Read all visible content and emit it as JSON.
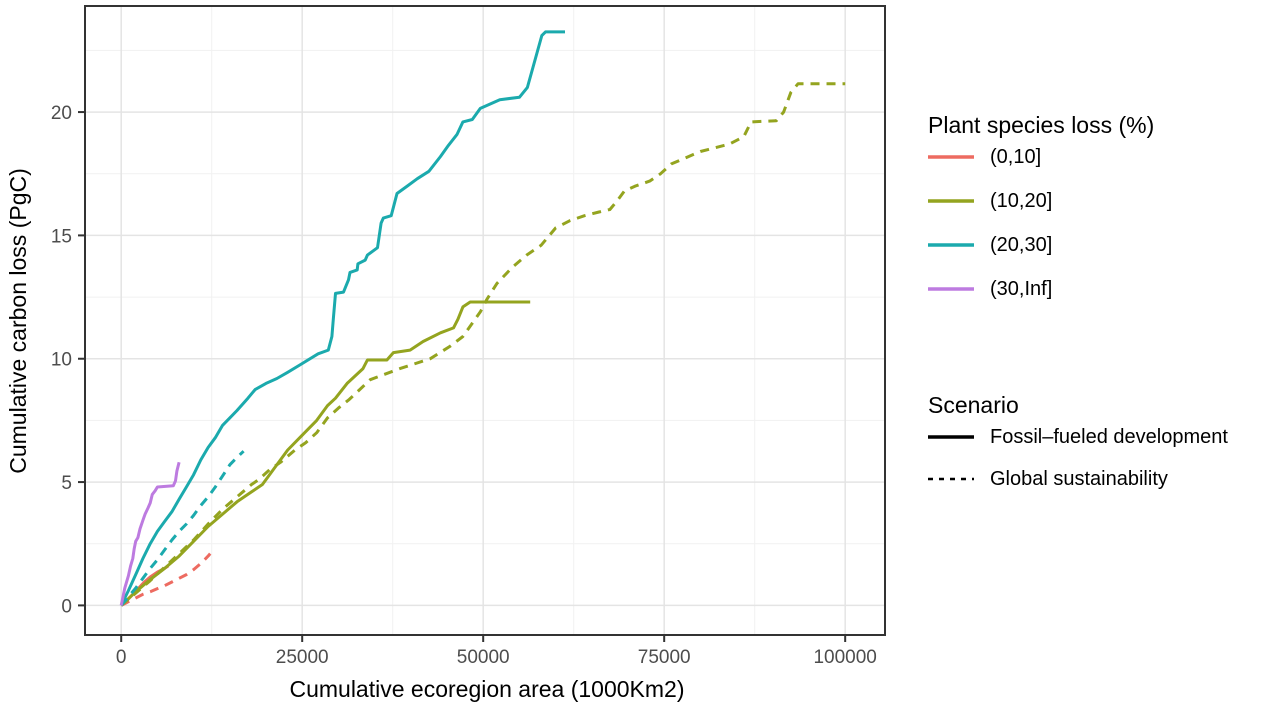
{
  "figure": {
    "background": "#FFFFFF",
    "panel_border_color": "#333333",
    "grid_major_color": "#E4E4E4",
    "grid_minor_color": "#F1F1F1",
    "tick_text_color": "#4D4D4D",
    "axis_title_color": "#000000"
  },
  "axes": {
    "x": {
      "label": "Cumulative ecoregion area (1000Km2)",
      "ticks": [
        0,
        25000,
        50000,
        75000,
        100000
      ],
      "tick_labels": [
        "0",
        "25000",
        "50000",
        "75000",
        "100000"
      ],
      "minor_ticks": [
        12500,
        37500,
        62500,
        87500
      ]
    },
    "y": {
      "label": "Cumulative carbon loss (PgC)",
      "ticks": [
        0,
        5,
        10,
        15,
        20
      ],
      "tick_labels": [
        "0",
        "5",
        "10",
        "15",
        "20"
      ],
      "minor_ticks": [
        2.5,
        7.5,
        12.5,
        17.5,
        22.5
      ]
    }
  },
  "legend_species": {
    "title": "Plant species loss (%)",
    "items": [
      {
        "label": "(0,10]",
        "color": "#ED6B61"
      },
      {
        "label": "(10,20]",
        "color": "#94A41F"
      },
      {
        "label": "(20,30]",
        "color": "#1BAAAD"
      },
      {
        "label": "(30,Inf]",
        "color": "#BD7BE0"
      }
    ]
  },
  "legend_scenario": {
    "title": "Scenario",
    "items": [
      {
        "label": "Fossil–fueled development",
        "line": "solid"
      },
      {
        "label": "Global sustainability",
        "line": "dashed"
      }
    ]
  },
  "chart_data": {
    "type": "line",
    "title": "",
    "xlabel": "Cumulative ecoregion area (1000Km2)",
    "ylabel": "Cumulative carbon loss (PgC)",
    "xlim": [
      -5000,
      105500
    ],
    "ylim": [
      -1.2,
      24.3
    ],
    "grid": "major+minor",
    "legend_position": "right",
    "series": [
      {
        "name": "(0,10] Fossil-fueled development",
        "species_bin": "(0,10]",
        "scenario": "Fossil-fueled development",
        "line": "solid",
        "color": "#ED6B61",
        "points": [
          [
            0,
            0
          ],
          [
            800,
            0.2
          ],
          [
            1600,
            0.45
          ],
          [
            2400,
            0.7
          ],
          [
            3200,
            0.95
          ],
          [
            4000,
            1.15
          ],
          [
            5000,
            1.35
          ],
          [
            6000,
            1.5
          ],
          [
            6500,
            1.6
          ]
        ]
      },
      {
        "name": "(0,10] Global sustainability",
        "species_bin": "(0,10]",
        "scenario": "Global sustainability",
        "line": "dashed",
        "color": "#ED6B61",
        "points": [
          [
            0,
            0
          ],
          [
            1000,
            0.15
          ],
          [
            2000,
            0.3
          ],
          [
            3000,
            0.45
          ],
          [
            4000,
            0.55
          ],
          [
            5000,
            0.68
          ],
          [
            6000,
            0.8
          ],
          [
            7000,
            0.95
          ],
          [
            8000,
            1.1
          ],
          [
            9000,
            1.25
          ],
          [
            10000,
            1.45
          ],
          [
            11000,
            1.7
          ],
          [
            12000,
            2.0
          ],
          [
            12300,
            2.1
          ]
        ]
      },
      {
        "name": "(10,20] Fossil-fueled development",
        "species_bin": "(10,20]",
        "scenario": "Fossil-fueled development",
        "line": "solid",
        "color": "#94A41F",
        "points": [
          [
            0,
            0
          ],
          [
            2000,
            0.55
          ],
          [
            4000,
            1.05
          ],
          [
            6000,
            1.5
          ],
          [
            8000,
            2.0
          ],
          [
            10000,
            2.6
          ],
          [
            12000,
            3.2
          ],
          [
            14000,
            3.7
          ],
          [
            16000,
            4.2
          ],
          [
            18000,
            4.6
          ],
          [
            19500,
            4.9
          ],
          [
            21000,
            5.5
          ],
          [
            23000,
            6.3
          ],
          [
            25000,
            6.9
          ],
          [
            27000,
            7.5
          ],
          [
            28500,
            8.1
          ],
          [
            29600,
            8.4
          ],
          [
            31200,
            9.0
          ],
          [
            33400,
            9.6
          ],
          [
            34000,
            9.95
          ],
          [
            36700,
            9.95
          ],
          [
            37600,
            10.25
          ],
          [
            39900,
            10.35
          ],
          [
            41700,
            10.7
          ],
          [
            44100,
            11.05
          ],
          [
            45900,
            11.25
          ],
          [
            46500,
            11.6
          ],
          [
            47200,
            12.1
          ],
          [
            48200,
            12.3
          ],
          [
            56500,
            12.3
          ]
        ]
      },
      {
        "name": "(10,20] Global sustainability",
        "species_bin": "(10,20]",
        "scenario": "Global sustainability",
        "line": "dashed",
        "color": "#94A41F",
        "points": [
          [
            0,
            0
          ],
          [
            2000,
            0.5
          ],
          [
            4000,
            1.0
          ],
          [
            6000,
            1.55
          ],
          [
            8000,
            2.1
          ],
          [
            10000,
            2.65
          ],
          [
            12000,
            3.3
          ],
          [
            14000,
            3.9
          ],
          [
            16000,
            4.4
          ],
          [
            18000,
            4.9
          ],
          [
            19000,
            5.1
          ],
          [
            20500,
            5.5
          ],
          [
            22000,
            5.8
          ],
          [
            24000,
            6.3
          ],
          [
            25500,
            6.6
          ],
          [
            27000,
            7.0
          ],
          [
            28500,
            7.6
          ],
          [
            30000,
            8.0
          ],
          [
            31500,
            8.35
          ],
          [
            34400,
            9.15
          ],
          [
            38500,
            9.6
          ],
          [
            42700,
            10.0
          ],
          [
            45400,
            10.5
          ],
          [
            47200,
            10.9
          ],
          [
            49600,
            11.9
          ],
          [
            50500,
            12.4
          ],
          [
            51900,
            13.05
          ],
          [
            54000,
            13.7
          ],
          [
            56000,
            14.2
          ],
          [
            58000,
            14.6
          ],
          [
            60000,
            15.3
          ],
          [
            62000,
            15.6
          ],
          [
            64000,
            15.8
          ],
          [
            66000,
            15.95
          ],
          [
            67500,
            16.05
          ],
          [
            68500,
            16.4
          ],
          [
            69500,
            16.8
          ],
          [
            71000,
            17.0
          ],
          [
            73000,
            17.2
          ],
          [
            74500,
            17.5
          ],
          [
            76000,
            17.9
          ],
          [
            78000,
            18.15
          ],
          [
            80000,
            18.4
          ],
          [
            82000,
            18.55
          ],
          [
            84000,
            18.7
          ],
          [
            86000,
            19.0
          ],
          [
            87000,
            19.6
          ],
          [
            90500,
            19.65
          ],
          [
            91500,
            20.0
          ],
          [
            92500,
            20.8
          ],
          [
            93500,
            21.15
          ],
          [
            100000,
            21.15
          ]
        ]
      },
      {
        "name": "(20,30] Fossil-fueled development",
        "species_bin": "(20,30]",
        "scenario": "Fossil-fueled development",
        "line": "solid",
        "color": "#1BAAAD",
        "points": [
          [
            0,
            0
          ],
          [
            1000,
            0.6
          ],
          [
            2000,
            1.25
          ],
          [
            3000,
            1.9
          ],
          [
            4000,
            2.5
          ],
          [
            5000,
            3.0
          ],
          [
            6000,
            3.4
          ],
          [
            7000,
            3.8
          ],
          [
            8000,
            4.3
          ],
          [
            9000,
            4.8
          ],
          [
            10000,
            5.3
          ],
          [
            11000,
            5.9
          ],
          [
            12000,
            6.4
          ],
          [
            13000,
            6.8
          ],
          [
            14000,
            7.3
          ],
          [
            15000,
            7.6
          ],
          [
            16000,
            7.9
          ],
          [
            17500,
            8.4
          ],
          [
            18500,
            8.75
          ],
          [
            20000,
            9.0
          ],
          [
            21500,
            9.2
          ],
          [
            23000,
            9.45
          ],
          [
            24700,
            9.75
          ],
          [
            27200,
            10.2
          ],
          [
            28600,
            10.35
          ],
          [
            29100,
            10.9
          ],
          [
            29300,
            11.6
          ],
          [
            29600,
            12.65
          ],
          [
            30700,
            12.7
          ],
          [
            31400,
            13.2
          ],
          [
            31600,
            13.5
          ],
          [
            32600,
            13.6
          ],
          [
            32700,
            13.85
          ],
          [
            33700,
            14.0
          ],
          [
            34000,
            14.2
          ],
          [
            35400,
            14.5
          ],
          [
            35900,
            15.5
          ],
          [
            36200,
            15.7
          ],
          [
            37300,
            15.8
          ],
          [
            38100,
            16.7
          ],
          [
            39500,
            17.0
          ],
          [
            40900,
            17.3
          ],
          [
            42500,
            17.6
          ],
          [
            44100,
            18.2
          ],
          [
            45200,
            18.65
          ],
          [
            46400,
            19.1
          ],
          [
            47200,
            19.6
          ],
          [
            48500,
            19.7
          ],
          [
            49600,
            20.15
          ],
          [
            52300,
            20.5
          ],
          [
            55000,
            20.6
          ],
          [
            56100,
            21.0
          ],
          [
            58100,
            23.1
          ],
          [
            58600,
            23.25
          ],
          [
            61300,
            23.25
          ]
        ]
      },
      {
        "name": "(20,30] Global sustainability",
        "species_bin": "(20,30]",
        "scenario": "Global sustainability",
        "line": "dashed",
        "color": "#1BAAAD",
        "points": [
          [
            0,
            0
          ],
          [
            1000,
            0.35
          ],
          [
            2000,
            0.7
          ],
          [
            3000,
            1.1
          ],
          [
            4000,
            1.5
          ],
          [
            5000,
            1.85
          ],
          [
            6000,
            2.25
          ],
          [
            7000,
            2.65
          ],
          [
            8000,
            3.0
          ],
          [
            9000,
            3.3
          ],
          [
            10000,
            3.65
          ],
          [
            11000,
            4.05
          ],
          [
            12000,
            4.4
          ],
          [
            13000,
            4.8
          ],
          [
            14000,
            5.25
          ],
          [
            15000,
            5.7
          ],
          [
            16000,
            6.0
          ],
          [
            16900,
            6.25
          ]
        ]
      },
      {
        "name": "(30,Inf] Fossil-fueled development",
        "species_bin": "(30,Inf]",
        "scenario": "Fossil-fueled development",
        "line": "solid",
        "color": "#BD7BE0",
        "points": [
          [
            0,
            0
          ],
          [
            500,
            0.7
          ],
          [
            1000,
            1.2
          ],
          [
            1300,
            1.6
          ],
          [
            1600,
            1.9
          ],
          [
            1800,
            2.3
          ],
          [
            2000,
            2.6
          ],
          [
            2300,
            2.75
          ],
          [
            2600,
            3.1
          ],
          [
            3000,
            3.45
          ],
          [
            3300,
            3.7
          ],
          [
            3700,
            3.95
          ],
          [
            4000,
            4.15
          ],
          [
            4300,
            4.5
          ],
          [
            4700,
            4.65
          ],
          [
            5000,
            4.8
          ],
          [
            7200,
            4.85
          ],
          [
            7500,
            5.05
          ],
          [
            7700,
            5.45
          ],
          [
            8000,
            5.8
          ]
        ]
      }
    ]
  }
}
